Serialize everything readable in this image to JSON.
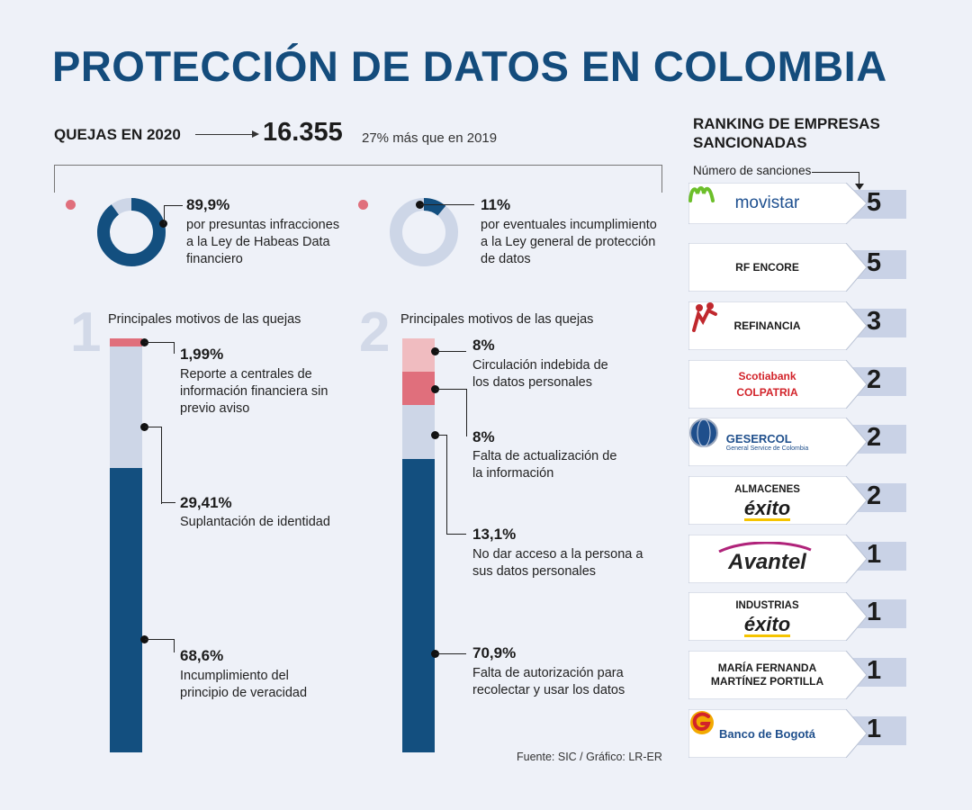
{
  "title": "PROTECCIÓN DE DATOS EN COLOMBIA",
  "complaints": {
    "label": "QUEJAS EN 2020",
    "total": "16.355",
    "change": "27% más que en 2019"
  },
  "colors": {
    "navy": "#134f7f",
    "light": "#cdd6e7",
    "red": "#e06f7c",
    "pink": "#f0bcc0",
    "title": "#144c7c"
  },
  "chart_data": [
    {
      "type": "pie",
      "title": "Quejas en 2020",
      "slices": [
        {
          "label": "por presuntas infracciones a la Ley de Habeas Data financiero",
          "value": 89.9,
          "display": "89,9%"
        },
        {
          "label": "por eventuales incumplimiento a la Ley general de protección de datos",
          "value": 11,
          "display": "11%"
        }
      ]
    },
    {
      "type": "bar",
      "stacked": true,
      "index": "1",
      "title": "Principales motivos de las quejas",
      "segments": [
        {
          "label": "Reporte a centrales de información financiera sin previo aviso",
          "value": 1.99,
          "display": "1,99%",
          "color": "#e06f7c"
        },
        {
          "label": "Suplantación de identidad",
          "value": 29.41,
          "display": "29,41%",
          "color": "#cdd6e7"
        },
        {
          "label": "Incumplimiento del principio de veracidad",
          "value": 68.6,
          "display": "68,6%",
          "color": "#134f7f"
        }
      ]
    },
    {
      "type": "bar",
      "stacked": true,
      "index": "2",
      "title": "Principales motivos de las quejas",
      "segments": [
        {
          "label": "Circulación indebida de los datos personales",
          "value": 8,
          "display": "8%",
          "color": "#f0bcc0"
        },
        {
          "label": "Falta de actualización de la información",
          "value": 8,
          "display": "8%",
          "color": "#e06f7c"
        },
        {
          "label": "No dar acceso a la persona a sus datos personales",
          "value": 13.1,
          "display": "13,1%",
          "color": "#cdd6e7"
        },
        {
          "label": "Falta de autorización para recolectar y usar los datos",
          "value": 70.9,
          "display": "70,9%",
          "color": "#134f7f"
        }
      ]
    },
    {
      "type": "table",
      "title": "RANKING DE EMPRESAS SANCIONADAS",
      "subtitle": "Número de sanciones",
      "rows": [
        {
          "company": "movistar",
          "sanctions": 5
        },
        {
          "company": "RF ENCORE",
          "sanctions": 5
        },
        {
          "company": "REFINANCIA",
          "sanctions": 3
        },
        {
          "company": "Scotiabank COLPATRIA",
          "sanctions": 2
        },
        {
          "company": "GESERCOL",
          "sanctions": 2
        },
        {
          "company": "ALMACENES éxito",
          "sanctions": 2
        },
        {
          "company": "Avantel",
          "sanctions": 1
        },
        {
          "company": "INDUSTRIAS éxito",
          "sanctions": 1
        },
        {
          "company": "MARÍA FERNANDA MARTÍNEZ PORTILLA",
          "sanctions": 1
        },
        {
          "company": "Banco de Bogotá",
          "sanctions": 1
        }
      ]
    }
  ],
  "logos": {
    "movistar": "movistar",
    "rf_encore": "RF ENCORE",
    "refinancia": "REFINANCIA",
    "scotiabank": "Scotiabank",
    "colpatria": "COLPATRIA",
    "gesercol": "GESERCOL",
    "gesercol_sub": "General Service de Colombia",
    "almacenes": "ALMACENES",
    "exito": "éxito",
    "avantel": "Avantel",
    "industrias": "INDUSTRIAS",
    "maria_1": "MARÍA FERNANDA",
    "maria_2": "MARTÍNEZ PORTILLA",
    "banco_bogota": "Banco de Bogotá"
  },
  "source": "Fuente: SIC / Gráfico: LR-ER"
}
